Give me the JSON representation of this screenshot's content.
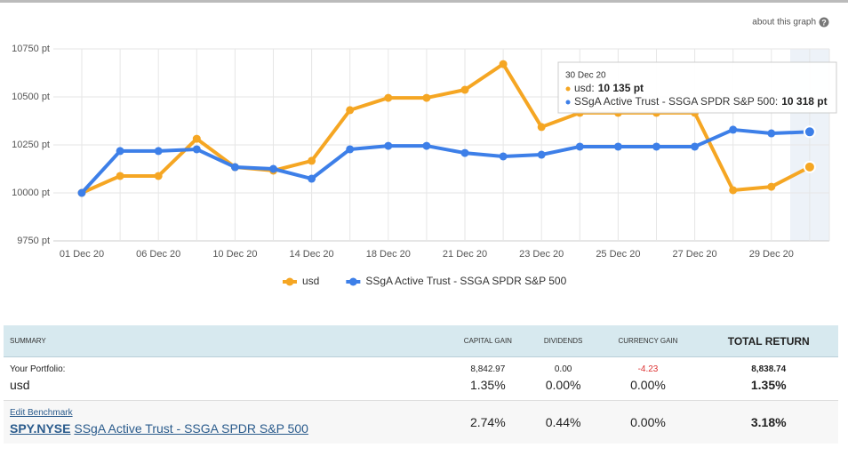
{
  "help_link": "about this graph",
  "chart_data": {
    "type": "line",
    "categories": [
      "01 Dec 20",
      null,
      "06 Dec 20",
      null,
      "10 Dec 20",
      null,
      "14 Dec 20",
      null,
      "18 Dec 20",
      null,
      "21 Dec 20",
      null,
      "23 Dec 20",
      null,
      "25 Dec 20",
      null,
      "27 Dec 20",
      null,
      "29 Dec 20",
      null
    ],
    "series": [
      {
        "name": "usd",
        "color": "#f5a623",
        "values": [
          10000,
          10088,
          10088,
          10282,
          10134,
          10116,
          10167,
          10431,
          10495,
          10495,
          10537,
          10671,
          10343,
          10417,
          10417,
          10417,
          10417,
          10014,
          10032,
          10135
        ]
      },
      {
        "name": "SSgA Active Trust - SSGA SPDR S&P 500",
        "color": "#3d7fe8",
        "values": [
          10000,
          10218,
          10218,
          10227,
          10134,
          10125,
          10074,
          10227,
          10245,
          10245,
          10208,
          10190,
          10199,
          10241,
          10241,
          10241,
          10241,
          10329,
          10310,
          10318
        ]
      }
    ],
    "ylim": [
      9750,
      10750
    ],
    "yticks": [
      {
        "value": 9750,
        "label": "9750 pt"
      },
      {
        "value": 10000,
        "label": "10000 pt"
      },
      {
        "value": 10250,
        "label": "10250 pt"
      },
      {
        "value": 10500,
        "label": "10500 pt"
      },
      {
        "value": 10750,
        "label": "10750 pt"
      }
    ],
    "grid": true,
    "legend": "bottom",
    "tooltip": {
      "date": "30 Dec 20",
      "rows": [
        {
          "label": "usd:",
          "value": "10 135 pt"
        },
        {
          "label": "SSgA Active Trust - SSGA SPDR S&P 500:",
          "value": "10 318 pt"
        }
      ]
    }
  },
  "table": {
    "headers": [
      "SUMMARY",
      "CAPITAL GAIN",
      "DIVIDENDS",
      "CURRENCY GAIN",
      "TOTAL RETURN"
    ],
    "portfolio": {
      "label": "Your Portfolio:",
      "name": "usd",
      "amounts": [
        "8,842.97",
        "0.00",
        "-4.23",
        "8,838.74"
      ],
      "percents": [
        "1.35%",
        "0.00%",
        "0.00%",
        "1.35%"
      ]
    },
    "benchmark": {
      "edit": "Edit Benchmark",
      "ticker": "SPY.NYSE",
      "name": "SSgA Active Trust - SSGA SPDR S&P 500",
      "percents": [
        "2.74%",
        "0.44%",
        "0.00%",
        "3.18%"
      ]
    }
  }
}
